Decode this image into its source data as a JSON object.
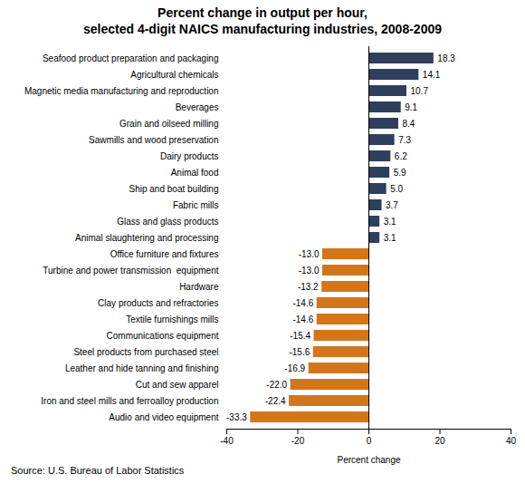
{
  "chart_data": {
    "type": "bar",
    "orientation": "horizontal",
    "title": "Percent change in output per hour,\nselected 4-digit NAICS manufacturing industries, 2008-2009",
    "xlabel": "Percent change",
    "annotations": [
      "Source: U.S. Bureau of Labor Statistics"
    ],
    "categories": [
      "Seafood product preparation and packaging",
      "Agricultural chemicals",
      "Magnetic media manufacturing and reproduction",
      "Beverages",
      "Grain and oilseed milling",
      "Sawmills and wood preservation",
      "Dairy products",
      "Animal food",
      "Ship and boat building",
      "Fabric mills",
      "Glass and glass products",
      "Animal slaughtering and processing",
      "Office furniture and fixtures",
      "Turbine and power transmission  equipment",
      "Hardware",
      "Clay products and refractories",
      "Textile furnishings mills",
      "Communications equipment",
      "Steel products from purchased steel",
      "Leather and hide tanning and finishing",
      "Cut and sew apparel",
      "Iron and steel mills and ferroalloy production",
      "Audio and video equipment"
    ],
    "values": [
      18.3,
      14.1,
      10.7,
      9.1,
      8.4,
      7.3,
      6.2,
      5.9,
      5.0,
      3.7,
      3.1,
      3.1,
      -13.0,
      -13.0,
      -13.2,
      -14.6,
      -14.6,
      -15.4,
      -15.6,
      -16.9,
      -22.0,
      -22.4,
      -33.3
    ],
    "value_labels": [
      "18.3",
      "14.1",
      "10.7",
      "9.1",
      "8.4",
      "7.3",
      "6.2",
      "5.9",
      "5.0",
      "3.7",
      "3.1",
      "3.1",
      "-13.0",
      "-13.0",
      "-13.2",
      "-14.6",
      "-14.6",
      "-15.4",
      "-15.6",
      "-16.9",
      "-22.0",
      "-22.4",
      "-33.3"
    ],
    "colors": [
      "#2E3F5C",
      "#2E3F5C",
      "#2E3F5C",
      "#2E3F5C",
      "#2E3F5C",
      "#2E3F5C",
      "#2E3F5C",
      "#2E3F5C",
      "#2E3F5C",
      "#2E3F5C",
      "#2E3F5C",
      "#2E3F5C",
      "#D4751A",
      "#D4751A",
      "#D4751A",
      "#D4751A",
      "#D4751A",
      "#D4751A",
      "#D4751A",
      "#D4751A",
      "#D4751A",
      "#D4751A",
      "#D4751A"
    ],
    "xlim": [
      -40,
      40
    ],
    "xticks": [
      -40,
      -20,
      0,
      20,
      40
    ],
    "data_labels": true,
    "grid": false
  }
}
